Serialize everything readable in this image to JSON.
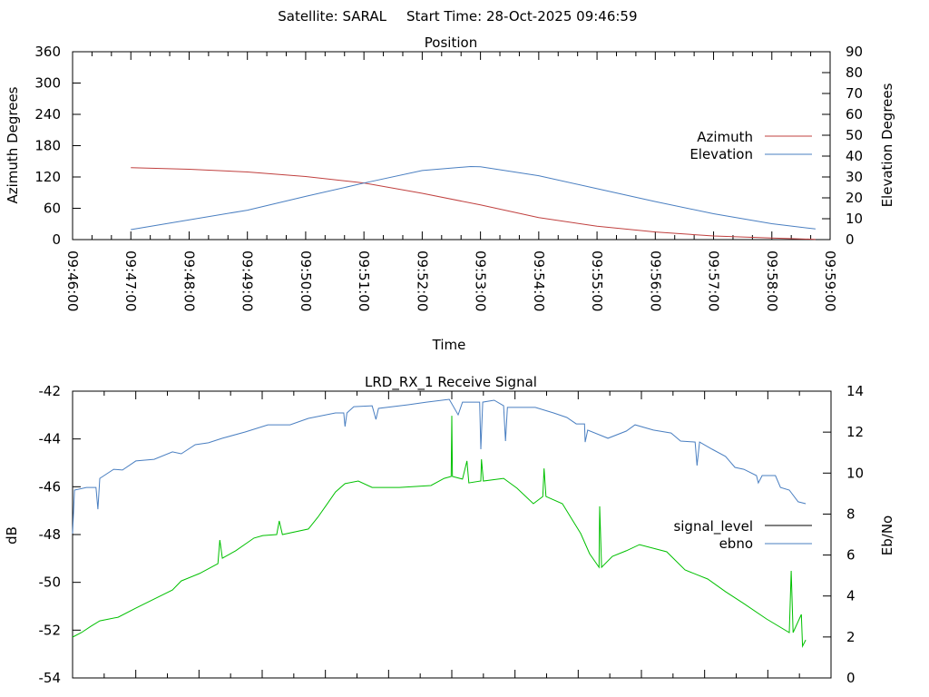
{
  "header": {
    "satellite": "Satellite: SARAL",
    "start_time": "Start Time: 28-Oct-2025 09:46:59"
  },
  "colors": {
    "azimuth": "#c0403f",
    "elevation": "#4a7fc1",
    "signal_level": "#000000",
    "ebno": "#4a7fc1",
    "green_trace": "#00c000",
    "blue_trace": "#4a7fc1"
  },
  "chart_data": [
    {
      "type": "line",
      "title": "Position",
      "xlabel": "Time",
      "ylabel": "Azimuth Degrees",
      "y2label": "Elevation Degrees",
      "x_unit": "minutes after 09:46:00",
      "xlim": [
        0,
        13
      ],
      "ylim": [
        0,
        360
      ],
      "y2lim": [
        0,
        90
      ],
      "x_tick_labels": [
        "09:46:00",
        "09:47:00",
        "09:48:00",
        "09:49:00",
        "09:50:00",
        "09:51:00",
        "09:52:00",
        "09:53:00",
        "09:54:00",
        "09:55:00",
        "09:56:00",
        "09:57:00",
        "09:58:00",
        "09:59:00"
      ],
      "y_tick_labels": [
        "0",
        "60",
        "120",
        "180",
        "240",
        "300",
        "360"
      ],
      "y2_tick_labels": [
        "0",
        "10",
        "20",
        "30",
        "40",
        "50",
        "60",
        "70",
        "80",
        "90"
      ],
      "legend": "right",
      "series": [
        {
          "name": "Azimuth",
          "axis": "y1",
          "color_key": "azimuth",
          "x": [
            1,
            2,
            3,
            4,
            5,
            6,
            7,
            8,
            9,
            10,
            11,
            12,
            12.75
          ],
          "y": [
            137.7,
            134.8,
            129.5,
            120.8,
            108.5,
            88.7,
            66.5,
            42,
            25.7,
            14.6,
            7,
            2.9,
            0.6
          ]
        },
        {
          "name": "Elevation",
          "axis": "y2",
          "color_key": "elevation",
          "x": [
            1,
            2,
            3,
            4,
            5,
            6,
            6.83,
            7,
            8,
            9,
            10,
            11,
            12,
            12.75
          ],
          "y": [
            4.8,
            9.5,
            14.1,
            20.7,
            27.1,
            33.1,
            35.0,
            34.9,
            30.6,
            24.4,
            18.2,
            12.4,
            7.6,
            5.1
          ]
        }
      ]
    },
    {
      "type": "line",
      "title": "LRD_RX_1 Receive Signal",
      "ylabel": "dB",
      "y2label": "Eb/No",
      "x_unit": "minutes after start",
      "xlim": [
        0,
        12
      ],
      "ylim": [
        -54,
        -42
      ],
      "y2lim": [
        0,
        14
      ],
      "y_tick_labels": [
        "-54",
        "-52",
        "-50",
        "-48",
        "-46",
        "-44",
        "-42"
      ],
      "y2_tick_labels": [
        "0",
        "2",
        "4",
        "6",
        "8",
        "10",
        "12",
        "14"
      ],
      "legend_entries": [
        {
          "label": "signal_level",
          "color_key": "signal_level"
        },
        {
          "label": "ebno",
          "color_key": "ebno"
        }
      ],
      "series": [
        {
          "name": "blue_trace",
          "axis": "y1",
          "color_key": "blue_trace",
          "x": [
            0,
            0.03,
            0.22,
            0.37,
            0.4,
            0.43,
            0.65,
            0.79,
            1.0,
            1.29,
            1.58,
            1.72,
            1.94,
            2.15,
            2.37,
            2.73,
            3.09,
            3.44,
            3.73,
            4.16,
            4.29,
            4.31,
            4.34,
            4.45,
            4.74,
            4.8,
            4.84,
            5.31,
            5.6,
            5.96,
            6.1,
            6.17,
            6.44,
            6.46,
            6.49,
            6.67,
            6.82,
            6.85,
            6.88,
            7.32,
            7.61,
            7.82,
            7.97,
            8.1,
            8.11,
            8.15,
            8.47,
            8.76,
            8.9,
            9.19,
            9.47,
            9.62,
            9.85,
            9.88,
            9.92,
            10.12,
            10.33,
            10.48,
            10.62,
            10.82,
            10.85,
            10.91,
            11.12,
            11.2,
            11.34,
            11.48,
            11.6
          ],
          "y": [
            -47.96,
            -46.14,
            -46.03,
            -46.03,
            -46.94,
            -45.65,
            -45.27,
            -45.3,
            -44.92,
            -44.85,
            -44.54,
            -44.62,
            -44.24,
            -44.16,
            -43.97,
            -43.71,
            -43.41,
            -43.41,
            -43.14,
            -42.91,
            -42.91,
            -43.48,
            -42.91,
            -42.65,
            -42.61,
            -43.18,
            -42.72,
            -42.57,
            -42.46,
            -42.34,
            -42.99,
            -42.46,
            -42.46,
            -44.43,
            -42.46,
            -42.38,
            -42.61,
            -44.09,
            -42.68,
            -42.68,
            -42.91,
            -43.1,
            -43.37,
            -43.37,
            -44.13,
            -43.63,
            -43.97,
            -43.67,
            -43.41,
            -43.63,
            -43.75,
            -44.09,
            -44.13,
            -45.11,
            -44.13,
            -44.43,
            -44.73,
            -45.19,
            -45.27,
            -45.53,
            -45.84,
            -45.53,
            -45.53,
            -46.03,
            -46.14,
            -46.63,
            -46.71
          ]
        },
        {
          "name": "green_trace",
          "axis": "y1",
          "color_key": "green_trace",
          "x": [
            0,
            0.14,
            0.29,
            0.43,
            0.72,
            1.0,
            1.29,
            1.58,
            1.72,
            2.01,
            2.3,
            2.33,
            2.37,
            2.58,
            2.87,
            3.01,
            3.23,
            3.27,
            3.32,
            3.73,
            3.88,
            4.02,
            4.16,
            4.31,
            4.52,
            4.74,
            5.17,
            5.67,
            5.88,
            5.99,
            6.0,
            6.01,
            6.17,
            6.24,
            6.27,
            6.46,
            6.47,
            6.5,
            6.82,
            7.03,
            7.29,
            7.44,
            7.46,
            7.49,
            7.75,
            7.9,
            8.04,
            8.18,
            8.33,
            8.34,
            8.37,
            8.54,
            8.76,
            8.97,
            9.4,
            9.69,
            10.05,
            10.33,
            10.62,
            10.98,
            11.34,
            11.37,
            11.4,
            11.53,
            11.55,
            11.6
          ],
          "y": [
            -52.29,
            -52.1,
            -51.84,
            -51.61,
            -51.46,
            -51.08,
            -50.7,
            -50.32,
            -49.94,
            -49.63,
            -49.22,
            -48.23,
            -48.99,
            -48.68,
            -48.15,
            -48.04,
            -48.0,
            -47.43,
            -48.0,
            -47.77,
            -47.28,
            -46.75,
            -46.22,
            -45.87,
            -45.76,
            -46.03,
            -46.03,
            -45.95,
            -45.65,
            -45.57,
            -43.03,
            -45.57,
            -45.68,
            -44.92,
            -45.84,
            -45.76,
            -44.85,
            -45.76,
            -45.65,
            -46.06,
            -46.71,
            -46.41,
            -45.23,
            -46.41,
            -46.71,
            -47.36,
            -47.96,
            -48.8,
            -49.37,
            -46.82,
            -49.37,
            -48.91,
            -48.68,
            -48.42,
            -48.72,
            -49.48,
            -49.86,
            -50.39,
            -50.89,
            -51.53,
            -52.1,
            -49.52,
            -52.1,
            -51.34,
            -52.67,
            -52.41
          ]
        }
      ]
    }
  ]
}
